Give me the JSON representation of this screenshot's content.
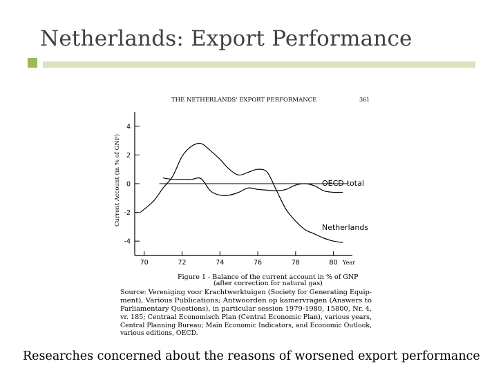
{
  "slide": {
    "title": "Netherlands: Export Performance",
    "caption": "Researches concerned about the reasons of worsened export performance",
    "accent_color": "#9bbb59",
    "rule_color": "#d8e4bc"
  },
  "scan": {
    "header": "THE NETHERLANDS' EXPORT PERFORMANCE",
    "page_number": "361",
    "figure_caption_line1": "Figure 1 - Balance of the current account in % of GNP",
    "figure_caption_line2": "(after correction for natural gas)",
    "source_lines": [
      "Source: Vereniging voor Krachtwerktuigen (Society for Generating Equip-",
      "ment), Various Publications; Antwoorden op kamervragen (Answers to",
      "Parliamentary Questions), in particular session 1979-1980, 15800, Nr. 4,",
      "vr. 185; Centraal Economisch Plan (Central Economic Plan), various years,",
      "Central Planning Bureau; Main Economic Indicators, and Economic Outlook,",
      "various editions, OECD."
    ]
  },
  "chart_data": {
    "type": "line",
    "ylabel": "Current Account (in % of GNP)",
    "xlabel": "Year",
    "xlim": [
      69.5,
      81
    ],
    "ylim": [
      -5,
      5
    ],
    "x_ticks": [
      "70",
      "72",
      "74",
      "76",
      "78",
      "80"
    ],
    "y_ticks": [
      "4",
      "2",
      "0",
      "-2",
      "-4"
    ],
    "grid": false,
    "series": [
      {
        "name": "Netherlands",
        "x": [
          69.8,
          70.5,
          71.0,
          71.5,
          72.0,
          72.5,
          73.0,
          73.5,
          74.0,
          74.5,
          75.0,
          75.5,
          76.0,
          76.5,
          77.0,
          77.5,
          78.0,
          78.5,
          79.0,
          79.5,
          80.0,
          80.5
        ],
        "y": [
          -2.0,
          -1.2,
          -0.3,
          0.5,
          1.9,
          2.6,
          2.8,
          2.3,
          1.7,
          1.0,
          0.6,
          0.8,
          1.0,
          0.8,
          -0.5,
          -1.8,
          -2.6,
          -3.2,
          -3.5,
          -3.8,
          -4.0,
          -4.1
        ]
      },
      {
        "name": "OECD-total",
        "x": [
          71.0,
          71.5,
          72.0,
          72.5,
          73.0,
          73.5,
          74.0,
          74.5,
          75.0,
          75.5,
          76.0,
          76.5,
          77.0,
          77.5,
          78.0,
          78.5,
          79.0,
          79.5,
          80.0,
          80.5
        ],
        "y": [
          0.4,
          0.3,
          0.3,
          0.3,
          0.35,
          -0.5,
          -0.8,
          -0.8,
          -0.6,
          -0.3,
          -0.4,
          -0.45,
          -0.5,
          -0.4,
          -0.1,
          0.0,
          -0.15,
          -0.5,
          -0.6,
          -0.6
        ]
      }
    ],
    "reference_line": 0
  }
}
